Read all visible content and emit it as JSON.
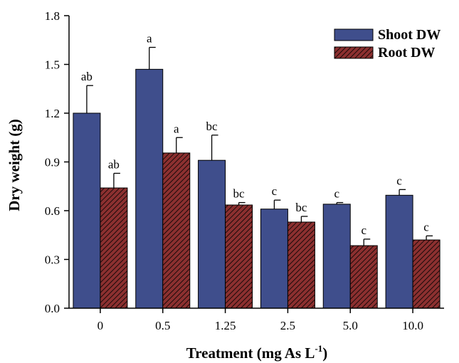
{
  "chart_data": {
    "type": "bar",
    "title": "",
    "xlabel": "Treatment (mg As L",
    "xlabel_sup": "-1",
    "xlabel_close": ")",
    "ylabel": "Dry weight (g)",
    "ylim": [
      0,
      1.8
    ],
    "yticks": [
      "0.0",
      "0.3",
      "0.6",
      "0.9",
      "1.2",
      "1.5",
      "1.8"
    ],
    "ytick_values": [
      0,
      0.3,
      0.6,
      0.9,
      1.2,
      1.5,
      1.8
    ],
    "categories": [
      "0",
      "0.5",
      "1.25",
      "2.5",
      "5.0",
      "10.0"
    ],
    "legend_position": "top-right",
    "grid": false,
    "series": [
      {
        "name": "Shoot DW",
        "color": "#3f4e8c",
        "pattern": "solid",
        "values": [
          1.2,
          1.47,
          0.91,
          0.61,
          0.64,
          0.695
        ],
        "errors": [
          0.17,
          0.135,
          0.155,
          0.055,
          0.01,
          0.035
        ],
        "labels": [
          "ab",
          "a",
          "bc",
          "c",
          "c",
          "c"
        ]
      },
      {
        "name": "Root DW",
        "color": "#8c3030",
        "pattern": "hatched",
        "values": [
          0.74,
          0.955,
          0.635,
          0.53,
          0.385,
          0.42
        ],
        "errors": [
          0.09,
          0.095,
          0.015,
          0.035,
          0.04,
          0.025
        ],
        "labels": [
          "ab",
          "a",
          "bc",
          "bc",
          "c",
          "c"
        ]
      }
    ]
  }
}
